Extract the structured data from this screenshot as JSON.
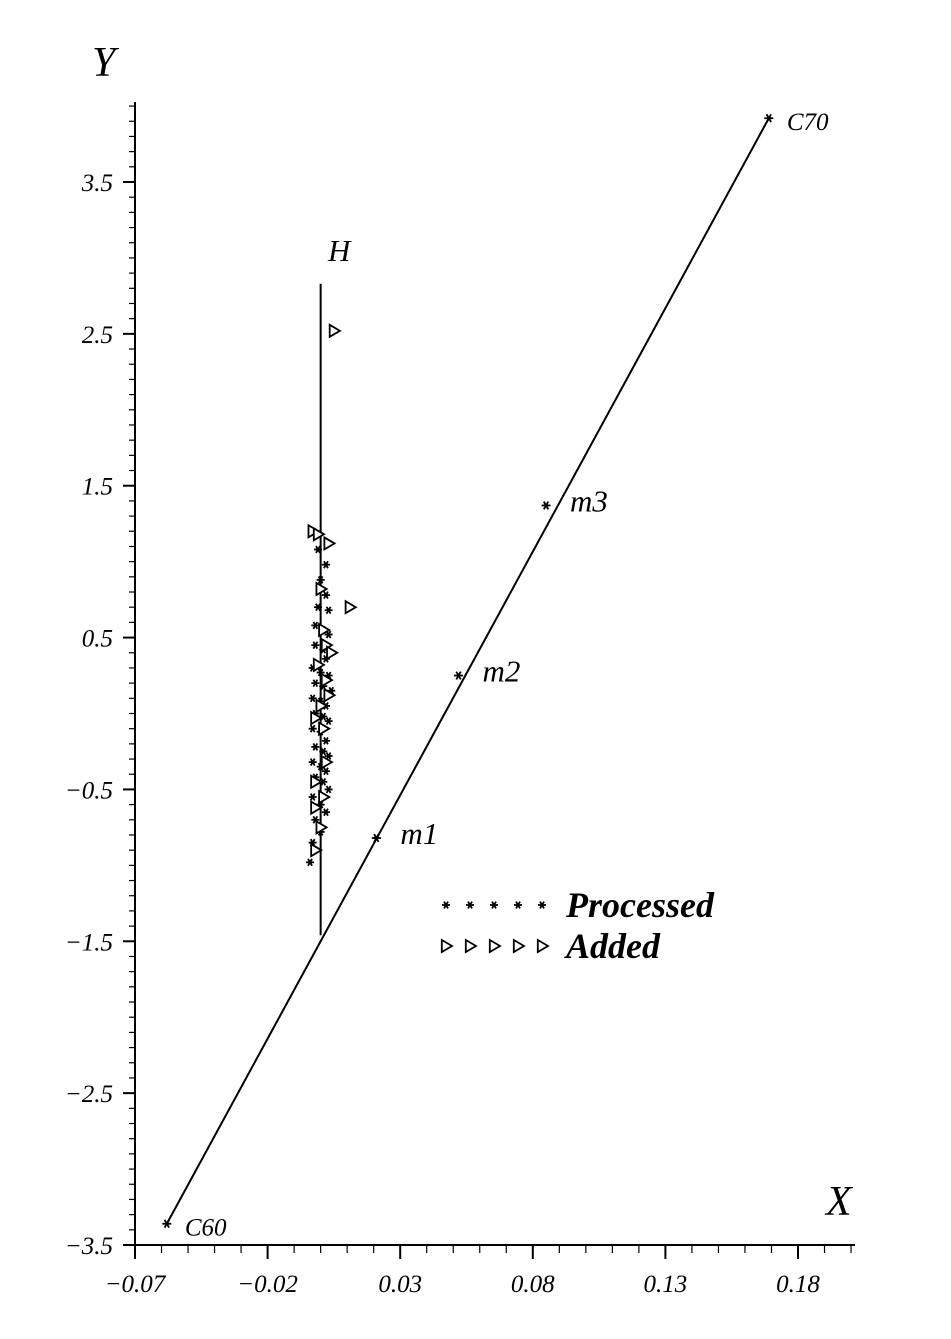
{
  "chart_data": {
    "type": "scatter",
    "xlabel": "X",
    "ylabel": "Y",
    "xlim": [
      -0.07,
      0.21
    ],
    "ylim": [
      -3.5,
      4.0
    ],
    "x_ticks": [
      -0.07,
      -0.02,
      0.03,
      0.08,
      0.13,
      0.18
    ],
    "x_tick_labels": [
      "−0.07",
      "−0.02",
      "0.03",
      "0.08",
      "0.13",
      "0.18"
    ],
    "y_ticks": [
      3.5,
      2.5,
      1.5,
      0.5,
      -0.5,
      -1.5,
      -2.5,
      -3.5
    ],
    "y_tick_labels": [
      "3.5",
      "2.5",
      "1.5",
      "0.5",
      "−0.5",
      "−1.5",
      "−2.5",
      "−3.5"
    ],
    "grid": false,
    "legend_placement": "center-right",
    "lines": [
      {
        "label": "C60–C70",
        "points": [
          [
            -0.058,
            -3.36
          ],
          [
            0.169,
            3.92
          ]
        ]
      },
      {
        "label": "H",
        "points": [
          [
            0.0,
            -1.46
          ],
          [
            0.0,
            2.83
          ]
        ]
      }
    ],
    "labeled_points": [
      {
        "label": "C60",
        "x": -0.058,
        "y": -3.36,
        "label_size": "small"
      },
      {
        "label": "m1",
        "x": 0.021,
        "y": -0.82,
        "label_size": "large"
      },
      {
        "label": "m2",
        "x": 0.052,
        "y": 0.25,
        "label_size": "large"
      },
      {
        "label": "m3",
        "x": 0.085,
        "y": 1.37,
        "label_size": "large"
      },
      {
        "label": "C70",
        "x": 0.169,
        "y": 3.92,
        "label_size": "small"
      }
    ],
    "line_label": {
      "text": "H",
      "x": 0.007,
      "y": 2.98
    },
    "series": [
      {
        "name": "Processed",
        "marker": "asterisk",
        "points": [
          [
            -0.001,
            1.08
          ],
          [
            0.002,
            0.98
          ],
          [
            0.0,
            0.88
          ],
          [
            0.002,
            0.78
          ],
          [
            -0.001,
            0.7
          ],
          [
            0.003,
            0.68
          ],
          [
            -0.002,
            0.58
          ],
          [
            0.001,
            0.55
          ],
          [
            0.003,
            0.52
          ],
          [
            -0.002,
            0.45
          ],
          [
            0.001,
            0.42
          ],
          [
            0.002,
            0.36
          ],
          [
            -0.003,
            0.3
          ],
          [
            0.0,
            0.27
          ],
          [
            0.003,
            0.25
          ],
          [
            -0.002,
            0.2
          ],
          [
            0.001,
            0.18
          ],
          [
            0.004,
            0.15
          ],
          [
            -0.003,
            0.1
          ],
          [
            0.0,
            0.08
          ],
          [
            0.002,
            0.05
          ],
          [
            -0.002,
            0.0
          ],
          [
            0.001,
            -0.02
          ],
          [
            0.003,
            -0.05
          ],
          [
            -0.003,
            -0.1
          ],
          [
            0.0,
            -0.12
          ],
          [
            0.002,
            -0.18
          ],
          [
            -0.002,
            -0.22
          ],
          [
            0.001,
            -0.25
          ],
          [
            0.003,
            -0.28
          ],
          [
            -0.003,
            -0.32
          ],
          [
            0.0,
            -0.35
          ],
          [
            0.002,
            -0.38
          ],
          [
            -0.002,
            -0.42
          ],
          [
            0.001,
            -0.45
          ],
          [
            0.003,
            -0.5
          ],
          [
            -0.003,
            -0.55
          ],
          [
            0.0,
            -0.6
          ],
          [
            0.002,
            -0.65
          ],
          [
            -0.002,
            -0.7
          ],
          [
            0.0,
            -0.78
          ],
          [
            -0.003,
            -0.85
          ],
          [
            -0.004,
            -0.98
          ]
        ]
      },
      {
        "name": "Added",
        "marker": "triangle-right",
        "points": [
          [
            0.005,
            2.52
          ],
          [
            -0.003,
            1.2
          ],
          [
            -0.001,
            1.18
          ],
          [
            0.003,
            1.12
          ],
          [
            0.0,
            0.82
          ],
          [
            0.011,
            0.7
          ],
          [
            0.001,
            0.55
          ],
          [
            0.002,
            0.45
          ],
          [
            0.004,
            0.4
          ],
          [
            -0.001,
            0.32
          ],
          [
            0.002,
            0.22
          ],
          [
            0.003,
            0.12
          ],
          [
            0.0,
            0.05
          ],
          [
            -0.002,
            -0.03
          ],
          [
            0.001,
            -0.1
          ],
          [
            0.002,
            -0.32
          ],
          [
            -0.002,
            -0.45
          ],
          [
            0.001,
            -0.55
          ],
          [
            -0.002,
            -0.62
          ],
          [
            0.0,
            -0.75
          ],
          [
            -0.002,
            -0.9
          ]
        ]
      }
    ]
  }
}
